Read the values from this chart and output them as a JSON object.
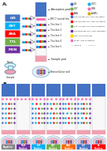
{
  "bg_color": "#ffffff",
  "absorption_pad_color": "#4472c4",
  "nc_membrane_color": "#f0f0f0",
  "sample_pad_color": "#f0a0b0",
  "conjugate_pad_color": "#f0a0b0",
  "flask_color": "#d0f0f8",
  "nitro_well_color": "#f0c0d0",
  "box_labels": [
    "LIN",
    "OXY",
    "ANA",
    "TYL",
    "MON"
  ],
  "box_colors": [
    "#4472c4",
    "#00b0f0",
    "#ff0000",
    "#70ad47",
    "#7030a0"
  ],
  "dot_colors_test": [
    "#4472c4",
    "#00b0f0",
    "#ff0000",
    "#70ad47",
    "#7030a0"
  ],
  "dot_color_ctrl": "#ff69b4",
  "line_labels_a": [
    "← BFC-T control line",
    "← Test line 1",
    "← Test line 2",
    "← Test line 3",
    "← Test line 4",
    "← Test line 5"
  ],
  "legend_items_top": [
    [
      "LIN",
      "#4472c4"
    ],
    [
      "OXTC",
      "#00b0f0"
    ],
    [
      "OXY",
      "#70ad47"
    ],
    [
      "ISTB",
      "#ff69b4"
    ],
    [
      "ANA",
      "#ff0000"
    ],
    [
      "AuNPs",
      "#d4aa00"
    ]
  ],
  "legend_conj": [
    [
      "#4472c4",
      "anti-LIN/anti-OXY AuNP conjugates"
    ],
    [
      "#ff0000",
      "anti-OXY/anti-ANA AuNP conjugates"
    ],
    [
      "#70ad47",
      "anti-ANA/anti-LIN AuNP conjugates"
    ],
    [
      "#7030a0",
      "anti-MON/anti-OXY AuNP conjugates"
    ]
  ],
  "section_labels": [
    "Negative",
    "MUX\nPositive",
    "LIN\nPositive",
    "OXY\nPositive",
    "ANA\nPositive",
    "LIN\nPositive",
    "5x\nPositive"
  ],
  "section_bg_colors": [
    "#888888",
    "#7030a0",
    "#00b0f0",
    "#70ad47",
    "#ff6600",
    "#4472c4",
    "#ff0000"
  ],
  "b_strip_patterns": [
    {
      "ctrl": true,
      "lines": [
        5,
        5,
        5,
        5,
        5
      ]
    },
    {
      "ctrl": true,
      "lines": [
        0,
        0,
        0,
        0,
        0
      ]
    },
    {
      "ctrl": true,
      "lines": [
        4,
        5,
        5,
        5,
        5
      ]
    },
    {
      "ctrl": true,
      "lines": [
        5,
        4,
        5,
        5,
        5
      ]
    },
    {
      "ctrl": true,
      "lines": [
        5,
        5,
        4,
        5,
        5
      ]
    },
    {
      "ctrl": true,
      "lines": [
        5,
        5,
        5,
        4,
        5
      ]
    },
    {
      "ctrl": false,
      "lines": [
        0,
        0,
        0,
        0,
        0
      ]
    }
  ]
}
